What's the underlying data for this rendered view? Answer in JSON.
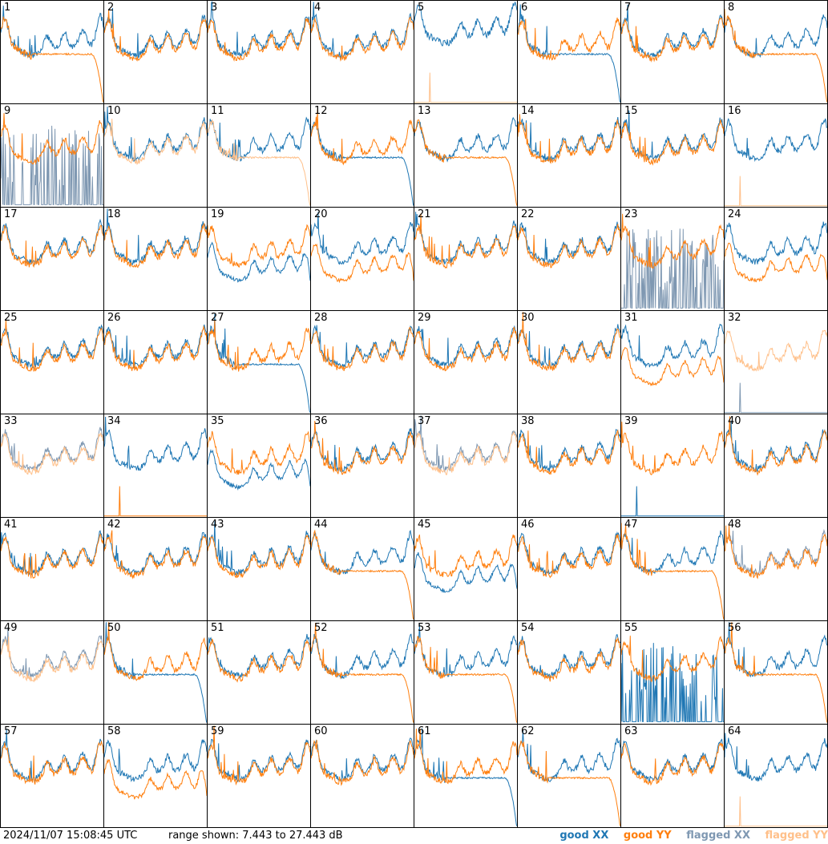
{
  "footer": {
    "timestamp": "2024/11/07 15:08:45 UTC",
    "range_text": "range shown: 7.443 to 27.443 dB"
  },
  "legend": {
    "good_xx": "good XX",
    "good_yy": "good YY",
    "flagged_xx": "flagged XX",
    "flagged_yy": "flagged YY"
  },
  "colors": {
    "good_xx": "#1f77b4",
    "good_yy": "#ff7f0e",
    "flagged_xx": "#7f98b2",
    "flagged_yy": "#ffc08a"
  },
  "chart_data": {
    "type": "line",
    "ylim": [
      7.443,
      27.443
    ],
    "panels": [
      {
        "label": "1",
        "xx": "good",
        "yy": "good",
        "xx_shape": "standard",
        "yy_shape": "droop"
      },
      {
        "label": "2",
        "xx": "good",
        "yy": "good",
        "xx_shape": "standard",
        "yy_shape": "standard"
      },
      {
        "label": "3",
        "xx": "good",
        "yy": "good",
        "xx_shape": "standard",
        "yy_shape": "standard"
      },
      {
        "label": "4",
        "xx": "good",
        "yy": "good",
        "xx_shape": "standard",
        "yy_shape": "standard"
      },
      {
        "label": "5",
        "xx": "good",
        "yy": "flagged",
        "xx_shape": "high",
        "yy_shape": "dead"
      },
      {
        "label": "6",
        "xx": "good",
        "yy": "good",
        "xx_shape": "droop",
        "yy_shape": "standard"
      },
      {
        "label": "7",
        "xx": "good",
        "yy": "good",
        "xx_shape": "standard",
        "yy_shape": "standard"
      },
      {
        "label": "8",
        "xx": "good",
        "yy": "good",
        "xx_shape": "standard",
        "yy_shape": "droop"
      },
      {
        "label": "9",
        "xx": "flagged",
        "yy": "good",
        "xx_shape": "spiky_low",
        "yy_shape": "standard"
      },
      {
        "label": "10",
        "xx": "good",
        "yy": "flagged",
        "xx_shape": "standard",
        "yy_shape": "standard"
      },
      {
        "label": "11",
        "xx": "good",
        "yy": "flagged",
        "xx_shape": "standard",
        "yy_shape": "droop"
      },
      {
        "label": "12",
        "xx": "good",
        "yy": "good",
        "xx_shape": "droop",
        "yy_shape": "standard"
      },
      {
        "label": "13",
        "xx": "good",
        "yy": "good",
        "xx_shape": "standard",
        "yy_shape": "droop"
      },
      {
        "label": "14",
        "xx": "good",
        "yy": "good",
        "xx_shape": "standard",
        "yy_shape": "standard"
      },
      {
        "label": "15",
        "xx": "good",
        "yy": "good",
        "xx_shape": "standard",
        "yy_shape": "standard"
      },
      {
        "label": "16",
        "xx": "good",
        "yy": "flagged",
        "xx_shape": "standard",
        "yy_shape": "dead"
      },
      {
        "label": "17",
        "xx": "good",
        "yy": "good",
        "xx_shape": "standard",
        "yy_shape": "standard"
      },
      {
        "label": "18",
        "xx": "good",
        "yy": "good",
        "xx_shape": "standard",
        "yy_shape": "standard"
      },
      {
        "label": "19",
        "xx": "good",
        "yy": "good",
        "xx_shape": "low",
        "yy_shape": "standard"
      },
      {
        "label": "20",
        "xx": "good",
        "yy": "good",
        "xx_shape": "standard",
        "yy_shape": "low"
      },
      {
        "label": "21",
        "xx": "good",
        "yy": "good",
        "xx_shape": "standard",
        "yy_shape": "standard"
      },
      {
        "label": "22",
        "xx": "good",
        "yy": "good",
        "xx_shape": "standard",
        "yy_shape": "standard"
      },
      {
        "label": "23",
        "xx": "flagged",
        "yy": "good",
        "xx_shape": "spiky_low",
        "yy_shape": "standard"
      },
      {
        "label": "24",
        "xx": "good",
        "yy": "good",
        "xx_shape": "standard",
        "yy_shape": "low"
      },
      {
        "label": "25",
        "xx": "good",
        "yy": "good",
        "xx_shape": "standard",
        "yy_shape": "standard"
      },
      {
        "label": "26",
        "xx": "good",
        "yy": "good",
        "xx_shape": "standard",
        "yy_shape": "standard"
      },
      {
        "label": "27",
        "xx": "good",
        "yy": "good",
        "xx_shape": "droop",
        "yy_shape": "standard"
      },
      {
        "label": "28",
        "xx": "good",
        "yy": "good",
        "xx_shape": "standard",
        "yy_shape": "standard"
      },
      {
        "label": "29",
        "xx": "good",
        "yy": "good",
        "xx_shape": "standard",
        "yy_shape": "standard"
      },
      {
        "label": "30",
        "xx": "good",
        "yy": "good",
        "xx_shape": "standard",
        "yy_shape": "standard"
      },
      {
        "label": "31",
        "xx": "good",
        "yy": "good",
        "xx_shape": "standard",
        "yy_shape": "low"
      },
      {
        "label": "32",
        "xx": "flagged",
        "yy": "flagged",
        "xx_shape": "dead",
        "yy_shape": "standard"
      },
      {
        "label": "33",
        "xx": "flagged",
        "yy": "flagged",
        "xx_shape": "standard",
        "yy_shape": "standard"
      },
      {
        "label": "34",
        "xx": "good",
        "yy": "good",
        "xx_shape": "standard",
        "yy_shape": "dead"
      },
      {
        "label": "35",
        "xx": "good",
        "yy": "good",
        "xx_shape": "low",
        "yy_shape": "standard"
      },
      {
        "label": "36",
        "xx": "good",
        "yy": "good",
        "xx_shape": "standard",
        "yy_shape": "standard"
      },
      {
        "label": "37",
        "xx": "flagged",
        "yy": "flagged",
        "xx_shape": "standard",
        "yy_shape": "standard"
      },
      {
        "label": "38",
        "xx": "good",
        "yy": "good",
        "xx_shape": "standard",
        "yy_shape": "standard"
      },
      {
        "label": "39",
        "xx": "good",
        "yy": "good",
        "xx_shape": "dead",
        "yy_shape": "standard"
      },
      {
        "label": "40",
        "xx": "good",
        "yy": "good",
        "xx_shape": "standard",
        "yy_shape": "standard"
      },
      {
        "label": "41",
        "xx": "good",
        "yy": "good",
        "xx_shape": "standard",
        "yy_shape": "standard"
      },
      {
        "label": "42",
        "xx": "good",
        "yy": "good",
        "xx_shape": "standard",
        "yy_shape": "standard"
      },
      {
        "label": "43",
        "xx": "good",
        "yy": "good",
        "xx_shape": "standard",
        "yy_shape": "standard"
      },
      {
        "label": "44",
        "xx": "good",
        "yy": "good",
        "xx_shape": "standard",
        "yy_shape": "droop"
      },
      {
        "label": "45",
        "xx": "good",
        "yy": "good",
        "xx_shape": "low",
        "yy_shape": "standard"
      },
      {
        "label": "46",
        "xx": "good",
        "yy": "good",
        "xx_shape": "standard",
        "yy_shape": "standard"
      },
      {
        "label": "47",
        "xx": "good",
        "yy": "good",
        "xx_shape": "standard",
        "yy_shape": "droop"
      },
      {
        "label": "48",
        "xx": "flagged",
        "yy": "good",
        "xx_shape": "standard",
        "yy_shape": "standard"
      },
      {
        "label": "49",
        "xx": "flagged",
        "yy": "flagged",
        "xx_shape": "standard",
        "yy_shape": "standard"
      },
      {
        "label": "50",
        "xx": "good",
        "yy": "good",
        "xx_shape": "droop",
        "yy_shape": "standard"
      },
      {
        "label": "51",
        "xx": "good",
        "yy": "good",
        "xx_shape": "standard",
        "yy_shape": "standard"
      },
      {
        "label": "52",
        "xx": "good",
        "yy": "good",
        "xx_shape": "standard",
        "yy_shape": "droop"
      },
      {
        "label": "53",
        "xx": "good",
        "yy": "good",
        "xx_shape": "standard",
        "yy_shape": "droop"
      },
      {
        "label": "54",
        "xx": "good",
        "yy": "good",
        "xx_shape": "standard",
        "yy_shape": "standard"
      },
      {
        "label": "55",
        "xx": "good",
        "yy": "good",
        "xx_shape": "spiky_low",
        "yy_shape": "standard"
      },
      {
        "label": "56",
        "xx": "good",
        "yy": "good",
        "xx_shape": "standard",
        "yy_shape": "droop"
      },
      {
        "label": "57",
        "xx": "good",
        "yy": "good",
        "xx_shape": "standard",
        "yy_shape": "standard"
      },
      {
        "label": "58",
        "xx": "good",
        "yy": "good",
        "xx_shape": "standard",
        "yy_shape": "low"
      },
      {
        "label": "59",
        "xx": "good",
        "yy": "good",
        "xx_shape": "standard",
        "yy_shape": "standard"
      },
      {
        "label": "60",
        "xx": "good",
        "yy": "good",
        "xx_shape": "standard",
        "yy_shape": "standard"
      },
      {
        "label": "61",
        "xx": "good",
        "yy": "good",
        "xx_shape": "droop",
        "yy_shape": "standard"
      },
      {
        "label": "62",
        "xx": "good",
        "yy": "good",
        "xx_shape": "standard",
        "yy_shape": "droop"
      },
      {
        "label": "63",
        "xx": "good",
        "yy": "good",
        "xx_shape": "standard",
        "yy_shape": "standard"
      },
      {
        "label": "64",
        "xx": "good",
        "yy": "flagged",
        "xx_shape": "standard",
        "yy_shape": "dead"
      }
    ]
  }
}
